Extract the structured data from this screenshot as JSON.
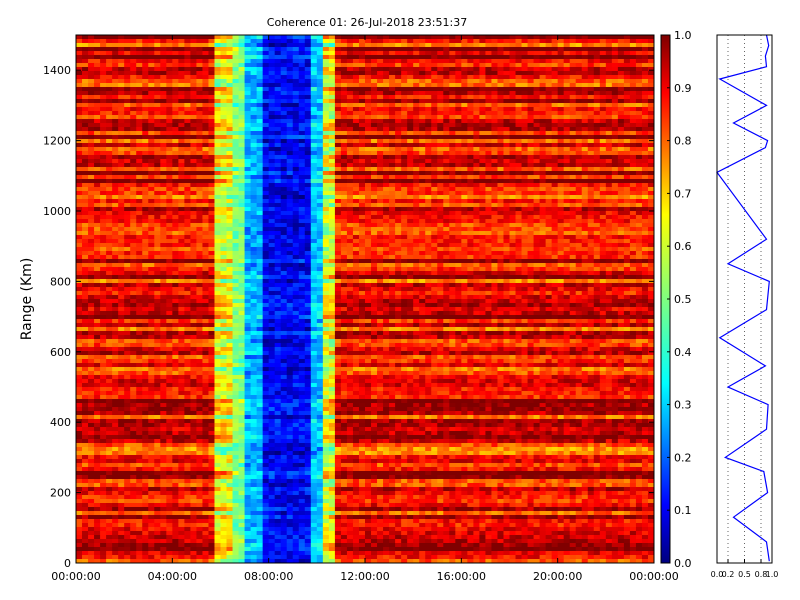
{
  "chart_data": [
    {
      "type": "heatmap",
      "title": "Coherence 01: 26-Jul-2018 23:51:37",
      "xlabel": "",
      "ylabel": "Range (Km)",
      "x_ticks": [
        "00:00:00",
        "04:00:00",
        "08:00:00",
        "12:00:00",
        "16:00:00",
        "20:00:00",
        "00:00:00"
      ],
      "x_range_hours": [
        0,
        24
      ],
      "y_ticks": [
        0,
        200,
        400,
        600,
        800,
        1000,
        1200,
        1400
      ],
      "ylim": [
        0,
        1500
      ],
      "colorbar": {
        "colormap": "jet",
        "range": [
          0.0,
          1.0
        ],
        "ticks": [
          "0.0",
          "0.1",
          "0.2",
          "0.3",
          "0.4",
          "0.5",
          "0.6",
          "0.7",
          "0.8",
          "0.9",
          "1.0"
        ]
      },
      "time_profile": [
        {
          "hours": [
            0.0,
            5.7
          ],
          "coherence": 0.88
        },
        {
          "hours": [
            5.7,
            6.4
          ],
          "coherence": 0.62
        },
        {
          "hours": [
            6.4,
            7.0
          ],
          "coherence": 0.5
        },
        {
          "hours": [
            7.0,
            7.8
          ],
          "coherence": 0.3
        },
        {
          "hours": [
            7.8,
            9.8
          ],
          "coherence": 0.12
        },
        {
          "hours": [
            9.8,
            10.3
          ],
          "coherence": 0.32
        },
        {
          "hours": [
            10.3,
            10.7
          ],
          "coherence": 0.6
        },
        {
          "hours": [
            10.7,
            24.0
          ],
          "coherence": 0.88
        }
      ],
      "grid": false
    },
    {
      "type": "line",
      "title": "",
      "xlabel": "",
      "ylabel": "",
      "x_ticks": [
        "0.0",
        "0.2",
        "0.5",
        "0.8",
        "1.0"
      ],
      "xlim": [
        0,
        1
      ],
      "ylim": [
        0,
        1500
      ],
      "series": [
        {
          "color": "#0000ff",
          "x": [
            0.95,
            0.9,
            0.3,
            0.92,
            0.85,
            0.15,
            0.9,
            0.93,
            0.2,
            0.88,
            0.05,
            0.9,
            0.95,
            0.2,
            0.9,
            0.0,
            0.88,
            0.92,
            0.3,
            0.9,
            0.05,
            0.9,
            0.88,
            0.94,
            0.9
          ],
          "y": [
            5,
            60,
            130,
            200,
            260,
            300,
            380,
            450,
            500,
            560,
            640,
            720,
            800,
            850,
            920,
            1110,
            1180,
            1200,
            1250,
            1300,
            1375,
            1410,
            1440,
            1470,
            1500
          ]
        }
      ]
    }
  ]
}
